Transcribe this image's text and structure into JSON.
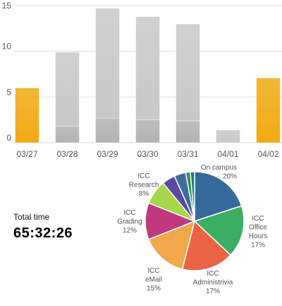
{
  "chart_data": [
    {
      "type": "bar",
      "stacked": true,
      "categories": [
        "03/27",
        "03/28",
        "03/29",
        "03/30",
        "03/31",
        "04/01",
        "04/02"
      ],
      "series": [
        {
          "values": [
            0,
            1.8,
            2.7,
            2.5,
            2.4,
            0,
            0
          ],
          "color": "#b3b3b3"
        },
        {
          "values": [
            0,
            8.1,
            12.0,
            11.3,
            10.6,
            1.4,
            0
          ],
          "color": "#c8c8c8"
        },
        {
          "values": [
            6.0,
            0,
            0,
            0,
            0,
            0,
            7.1
          ],
          "color": "#f0aa12"
        }
      ],
      "ylim": [
        0,
        15
      ],
      "yticks": [
        "0",
        "5",
        "10",
        "15"
      ],
      "grid": true
    },
    {
      "type": "pie",
      "slices": [
        {
          "label": [
            "On campus",
            "20%"
          ],
          "value": 20,
          "color": "#356a9a"
        },
        {
          "label": [
            "ICC",
            "Office",
            "Hours",
            "17%"
          ],
          "value": 17,
          "color": "#3aae62"
        },
        {
          "label": [
            "ICC",
            "Administrivia",
            "17%"
          ],
          "value": 17,
          "color": "#ec6444"
        },
        {
          "label": [
            "ICC",
            "eMail",
            "15%"
          ],
          "value": 15,
          "color": "#f0a84a"
        },
        {
          "label": [
            "ICC",
            "Grading",
            "12%"
          ],
          "value": 12,
          "color": "#c0397f"
        },
        {
          "label": [
            "ICC",
            "Research",
            "8%"
          ],
          "value": 8,
          "color": "#a6d64a"
        },
        {
          "label": [],
          "value": 4.3,
          "color": "#5a48a2"
        },
        {
          "label": [],
          "value": 3.8,
          "color": "#3e6e9c"
        },
        {
          "label": [],
          "value": 1.5,
          "color": "#2e8f48"
        },
        {
          "label": [],
          "value": 1.4,
          "color": "#1b7a88"
        }
      ]
    }
  ],
  "summary": {
    "total_label": "Total time",
    "total_value": "65:32:26"
  }
}
